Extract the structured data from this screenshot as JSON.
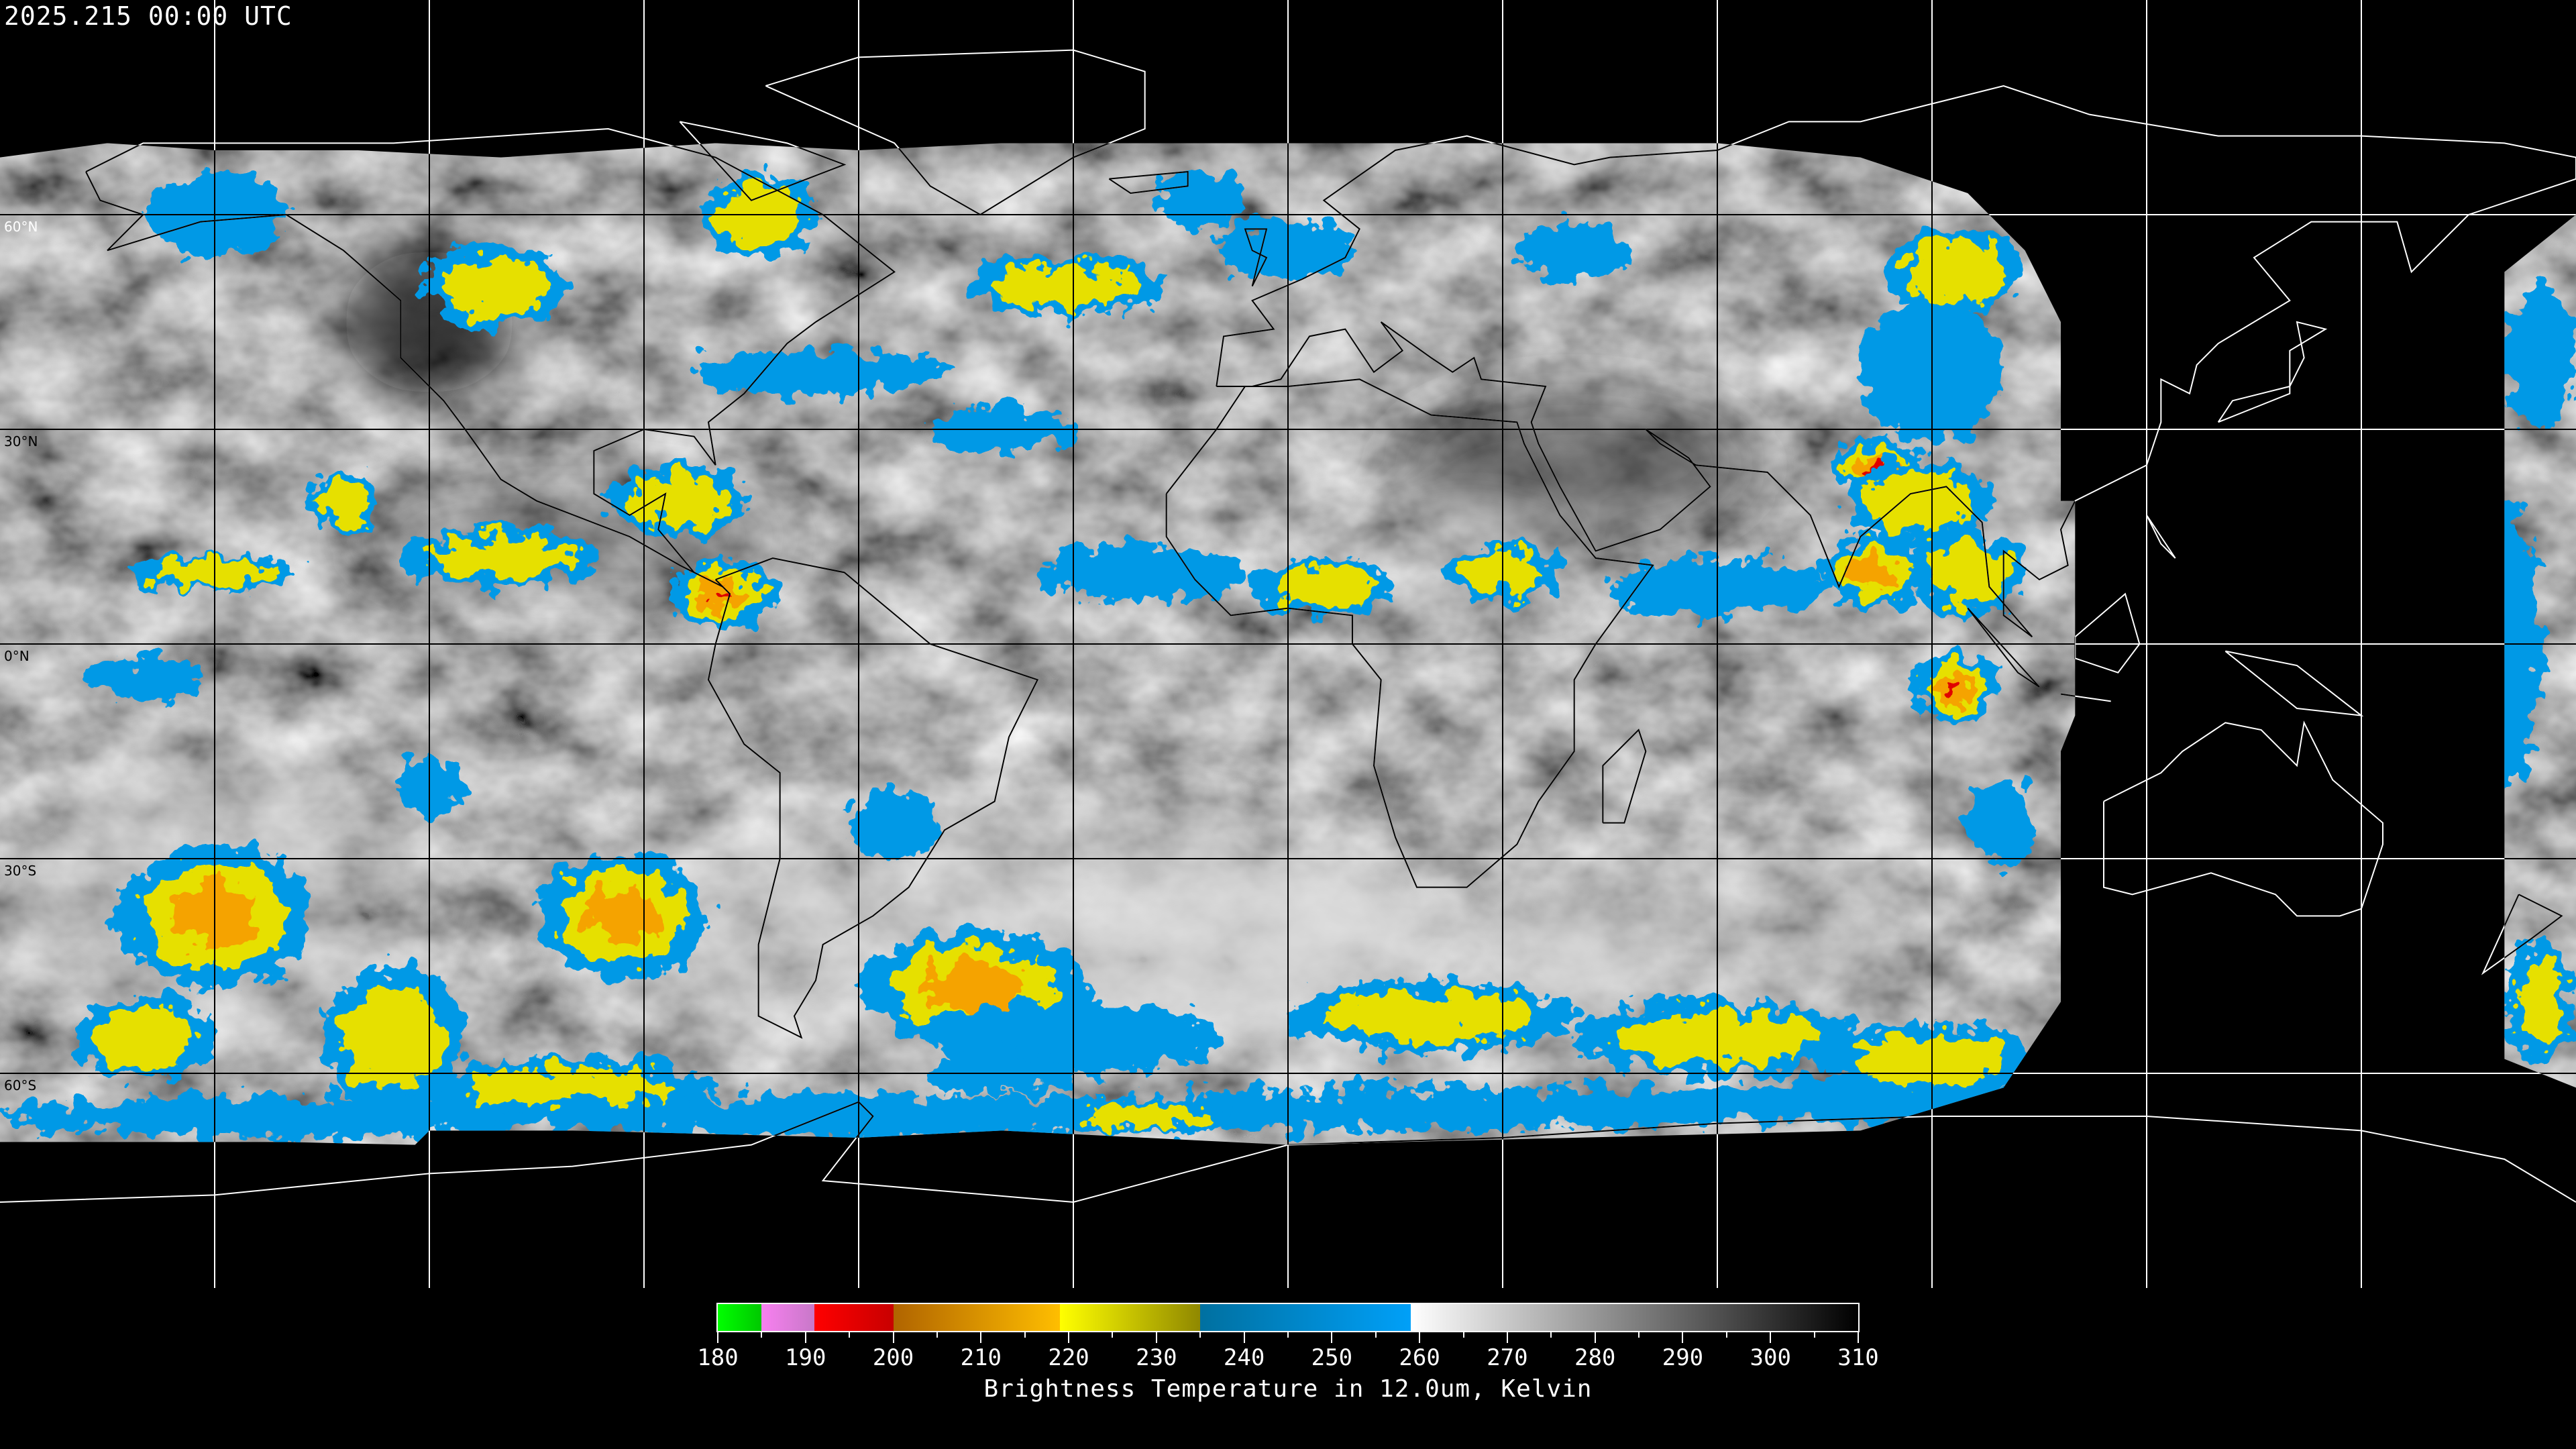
{
  "header": {
    "timestamp": "2025.215 00:00 UTC"
  },
  "map": {
    "projection": "equirectangular",
    "lat_labels": [
      {
        "lat": 60,
        "label": "60°N"
      },
      {
        "lat": 30,
        "label": "30°N"
      },
      {
        "lat": 0,
        "label": "0°N"
      },
      {
        "lat": -30,
        "label": "30°S"
      },
      {
        "lat": -60,
        "label": "60°S"
      }
    ],
    "grid_spacing_deg": 30,
    "coastline_color_inside": "#000000",
    "coastline_color_outside": "#ffffff"
  },
  "colorbar": {
    "title": "Brightness Temperature in 12.0um, Kelvin",
    "min": 180,
    "max": 310,
    "tick_labels": [
      "180",
      "190",
      "200",
      "210",
      "220",
      "230",
      "240",
      "250",
      "260",
      "270",
      "280",
      "290",
      "300",
      "310"
    ],
    "segments": [
      {
        "from": 180,
        "to": 185,
        "colors": [
          "#00ff00",
          "#00c800"
        ]
      },
      {
        "from": 185,
        "to": 191,
        "colors": [
          "#f880f0",
          "#c878c8"
        ]
      },
      {
        "from": 191,
        "to": 200,
        "colors": [
          "#ff0000",
          "#c80000"
        ]
      },
      {
        "from": 200,
        "to": 219,
        "colors": [
          "#b06400",
          "#ffbe00"
        ]
      },
      {
        "from": 219,
        "to": 235,
        "colors": [
          "#ffff00",
          "#908800"
        ]
      },
      {
        "from": 235,
        "to": 259,
        "colors": [
          "#0070a0",
          "#00a0f8"
        ]
      },
      {
        "from": 259,
        "to": 310,
        "colors": [
          "#ffffff",
          "#000000"
        ]
      }
    ]
  }
}
